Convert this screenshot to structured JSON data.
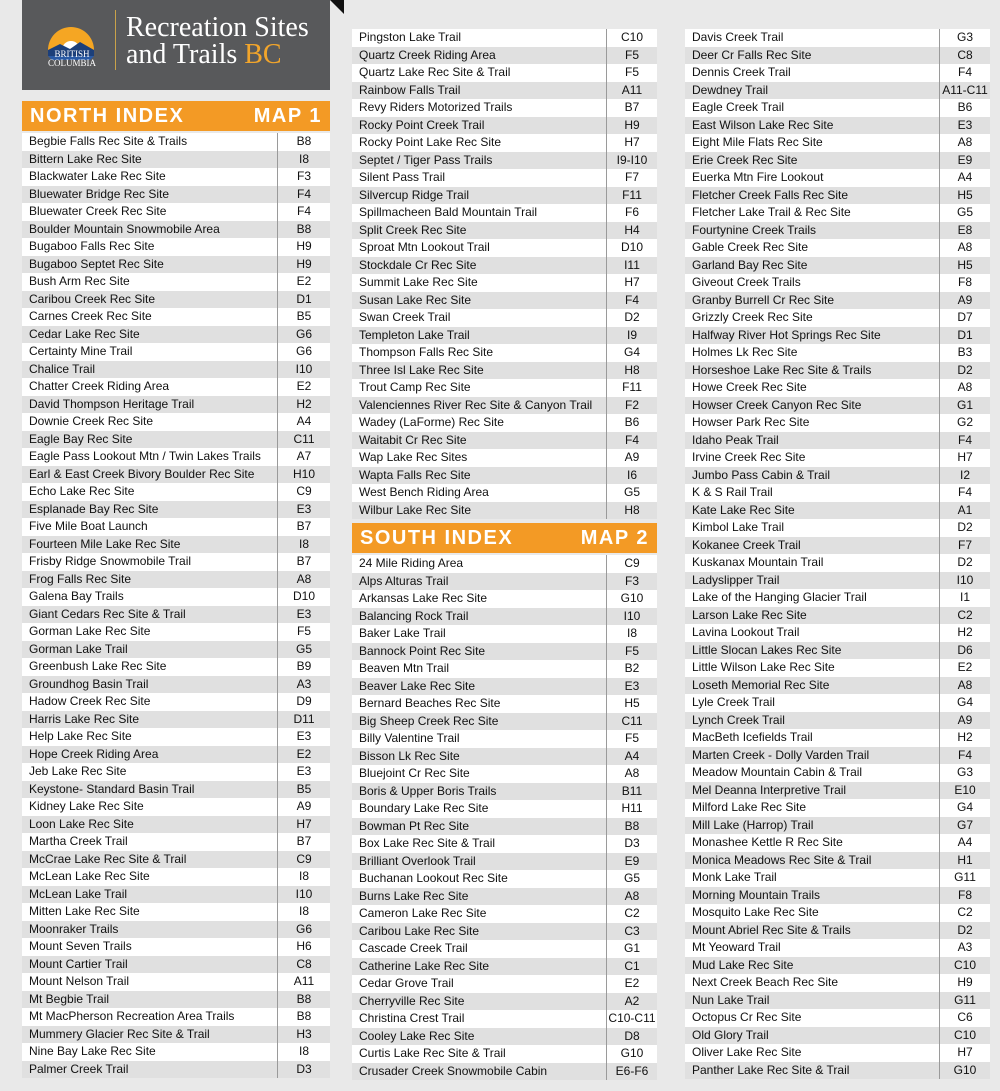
{
  "header": {
    "logo_text_line1": "BRITISH",
    "logo_text_line2": "COLUMBIA",
    "title_line1": "Recreation Sites",
    "title_line2_a": "and Trails",
    "title_line2_b": "BC"
  },
  "colors": {
    "accent": "#f39a25",
    "header_bg": "#58595b",
    "bc_gold": "#f2a52b"
  },
  "north_index": {
    "title": "NORTH INDEX",
    "map": "MAP 1",
    "entries": [
      [
        "Begbie Falls Rec Site & Trails",
        "B8"
      ],
      [
        "Bittern Lake Rec Site",
        "I8"
      ],
      [
        "Blackwater Lake Rec Site",
        "F3"
      ],
      [
        "Bluewater Bridge Rec Site",
        "F4"
      ],
      [
        "Bluewater Creek Rec Site",
        "F4"
      ],
      [
        "Boulder Mountain Snowmobile Area",
        "B8"
      ],
      [
        "Bugaboo Falls Rec Site",
        "H9"
      ],
      [
        "Bugaboo Septet Rec Site",
        "H9"
      ],
      [
        "Bush Arm Rec Site",
        "E2"
      ],
      [
        "Caribou Creek Rec Site",
        "D1"
      ],
      [
        "Carnes Creek Rec Site",
        "B5"
      ],
      [
        "Cedar Lake Rec Site",
        "G6"
      ],
      [
        "Certainty Mine Trail",
        "G6"
      ],
      [
        "Chalice Trail",
        "I10"
      ],
      [
        "Chatter Creek Riding Area",
        "E2"
      ],
      [
        "David Thompson Heritage Trail",
        "H2"
      ],
      [
        "Downie Creek Rec Site",
        "A4"
      ],
      [
        "Eagle Bay Rec Site",
        "C11"
      ],
      [
        "Eagle Pass Lookout Mtn / Twin Lakes Trails",
        "A7"
      ],
      [
        "Earl & East Creek Bivory Boulder Rec Site",
        "H10"
      ],
      [
        "Echo Lake Rec Site",
        "C9"
      ],
      [
        "Esplanade Bay Rec Site",
        "E3"
      ],
      [
        "Five Mile Boat Launch",
        "B7"
      ],
      [
        "Fourteen Mile Lake Rec Site",
        "I8"
      ],
      [
        "Frisby Ridge Snowmobile Trail",
        "B7"
      ],
      [
        "Frog Falls Rec Site",
        "A8"
      ],
      [
        "Galena Bay Trails",
        "D10"
      ],
      [
        "Giant Cedars Rec Site & Trail",
        "E3"
      ],
      [
        "Gorman Lake Rec Site",
        "F5"
      ],
      [
        "Gorman Lake Trail",
        "G5"
      ],
      [
        "Greenbush Lake Rec Site",
        "B9"
      ],
      [
        "Groundhog Basin Trail",
        "A3"
      ],
      [
        "Hadow Creek Rec Site",
        "D9"
      ],
      [
        "Harris Lake Rec Site",
        "D11"
      ],
      [
        "Help Lake Rec Site",
        "E3"
      ],
      [
        "Hope Creek Riding Area",
        "E2"
      ],
      [
        "Jeb Lake Rec Site",
        "E3"
      ],
      [
        "Keystone- Standard Basin Trail",
        "B5"
      ],
      [
        "Kidney Lake Rec Site",
        "A9"
      ],
      [
        "Loon Lake Rec Site",
        "H7"
      ],
      [
        "Martha Creek Trail",
        "B7"
      ],
      [
        "McCrae Lake Rec Site & Trail",
        "C9"
      ],
      [
        "McLean Lake Rec Site",
        "I8"
      ],
      [
        "McLean Lake Trail",
        "I10"
      ],
      [
        "Mitten Lake Rec Site",
        "I8"
      ],
      [
        "Moonraker Trails",
        "G6"
      ],
      [
        "Mount Seven Trails",
        "H6"
      ],
      [
        "Mount Cartier Trail",
        "C8"
      ],
      [
        "Mount Nelson Trail",
        "A11"
      ],
      [
        "Mt Begbie Trail",
        "B8"
      ],
      [
        "Mt MacPherson Recreation Area Trails",
        "B8"
      ],
      [
        "Mummery Glacier Rec Site & Trail",
        "H3"
      ],
      [
        "Nine Bay Lake Rec Site",
        "I8"
      ],
      [
        "Palmer Creek Trail",
        "D3"
      ]
    ]
  },
  "north_index_cont": {
    "entries": [
      [
        "Pingston Lake Trail",
        "C10"
      ],
      [
        "Quartz Creek Riding Area",
        "F5"
      ],
      [
        "Quartz Lake Rec Site & Trail",
        "F5"
      ],
      [
        "Rainbow Falls Trail",
        "A11"
      ],
      [
        "Revy Riders Motorized Trails",
        "B7"
      ],
      [
        "Rocky Point Creek Trail",
        "H9"
      ],
      [
        "Rocky Point Lake Rec Site",
        "H7"
      ],
      [
        "Septet / Tiger Pass Trails",
        "I9-I10"
      ],
      [
        "Silent Pass Trail",
        "F7"
      ],
      [
        "Silvercup Ridge Trail",
        "F11"
      ],
      [
        "Spillmacheen Bald Mountain Trail",
        "F6"
      ],
      [
        "Split Creek Rec Site",
        "H4"
      ],
      [
        "Sproat Mtn Lookout Trail",
        "D10"
      ],
      [
        "Stockdale Cr Rec Site",
        "I11"
      ],
      [
        "Summit Lake Rec Site",
        "H7"
      ],
      [
        "Susan Lake Rec Site",
        "F4"
      ],
      [
        "Swan Creek Trail",
        "D2"
      ],
      [
        "Templeton Lake Trail",
        "I9"
      ],
      [
        "Thompson Falls Rec Site",
        "G4"
      ],
      [
        "Three Isl Lake Rec Site",
        "H8"
      ],
      [
        "Trout Camp Rec Site",
        "F11"
      ],
      [
        "Valenciennes River Rec Site & Canyon Trail",
        "F2"
      ],
      [
        "Wadey (LaForme) Rec Site",
        "B6"
      ],
      [
        "Waitabit Cr Rec Site",
        "F4"
      ],
      [
        "Wap Lake Rec Sites",
        "A9"
      ],
      [
        "Wapta Falls Rec Site",
        "I6"
      ],
      [
        "West Bench Riding Area",
        "G5"
      ],
      [
        "Wilbur Lake Rec Site",
        "H8"
      ]
    ]
  },
  "south_index": {
    "title": "SOUTH INDEX",
    "map": "MAP 2",
    "entries": [
      [
        "24 Mile Riding Area",
        "C9"
      ],
      [
        "Alps Alturas Trail",
        "F3"
      ],
      [
        "Arkansas Lake Rec Site",
        "G10"
      ],
      [
        "Balancing Rock Trail",
        "I10"
      ],
      [
        "Baker Lake Trail",
        "I8"
      ],
      [
        "Bannock Point Rec Site",
        "F5"
      ],
      [
        "Beaven Mtn Trail",
        "B2"
      ],
      [
        "Beaver Lake Rec Site",
        "E3"
      ],
      [
        "Bernard Beaches Rec Site",
        "H5"
      ],
      [
        "Big Sheep Creek Rec Site",
        "C11"
      ],
      [
        "Billy Valentine Trail",
        "F5"
      ],
      [
        "Bisson Lk Rec Site",
        "A4"
      ],
      [
        "Bluejoint Cr Rec Site",
        "A8"
      ],
      [
        "Boris & Upper Boris Trails",
        "B11"
      ],
      [
        "Boundary Lake Rec Site",
        "H11"
      ],
      [
        "Bowman Pt Rec Site",
        "B8"
      ],
      [
        "Box Lake Rec Site & Trail",
        "D3"
      ],
      [
        "Brilliant Overlook Trail",
        "E9"
      ],
      [
        "Buchanan Lookout Rec Site",
        "G5"
      ],
      [
        "Burns Lake Rec Site",
        "A8"
      ],
      [
        "Cameron Lake Rec Site",
        "C2"
      ],
      [
        "Caribou Lake Rec Site",
        "C3"
      ],
      [
        "Cascade Creek Trail",
        "G1"
      ],
      [
        "Catherine Lake Rec Site",
        "C1"
      ],
      [
        "Cedar Grove Trail",
        "E2"
      ],
      [
        "Cherryville Rec Site",
        "A2"
      ],
      [
        "Christina Crest Trail",
        "C10-C11"
      ],
      [
        "Cooley Lake Rec Site",
        "D8"
      ],
      [
        "Curtis Lake Rec Site & Trail",
        "G10"
      ],
      [
        "Crusader Creek Snowmobile Cabin",
        "E6-F6"
      ]
    ]
  },
  "south_index_cont": {
    "entries": [
      [
        "Davis Creek Trail",
        "G3"
      ],
      [
        "Deer Cr Falls Rec Site",
        "C8"
      ],
      [
        "Dennis Creek Trail",
        "F4"
      ],
      [
        "Dewdney Trail",
        "A11-C11"
      ],
      [
        "Eagle Creek Trail",
        "B6"
      ],
      [
        "East Wilson Lake Rec Site",
        "E3"
      ],
      [
        "Eight Mile Flats Rec Site",
        "A8"
      ],
      [
        "Erie Creek Rec Site",
        "E9"
      ],
      [
        "Euerka Mtn Fire Lookout",
        "A4"
      ],
      [
        "Fletcher Creek Falls Rec Site",
        "H5"
      ],
      [
        "Fletcher Lake Trail & Rec Site",
        "G5"
      ],
      [
        "Fourtynine Creek Trails",
        "E8"
      ],
      [
        "Gable Creek Rec Site",
        "A8"
      ],
      [
        "Garland Bay Rec Site",
        "H5"
      ],
      [
        "Giveout Creek Trails",
        "F8"
      ],
      [
        "Granby Burrell Cr Rec Site",
        "A9"
      ],
      [
        "Grizzly Creek Rec Site",
        "D7"
      ],
      [
        "Halfway River Hot Springs Rec Site",
        "D1"
      ],
      [
        "Holmes Lk Rec Site",
        "B3"
      ],
      [
        "Horseshoe Lake Rec Site & Trails",
        "D2"
      ],
      [
        "Howe Creek Rec Site",
        "A8"
      ],
      [
        "Howser Creek Canyon Rec Site",
        "G1"
      ],
      [
        "Howser Park Rec Site",
        "G2"
      ],
      [
        "Idaho Peak Trail",
        "F4"
      ],
      [
        "Irvine Creek Rec Site",
        "H7"
      ],
      [
        "Jumbo Pass Cabin & Trail",
        "I2"
      ],
      [
        "K & S Rail Trail",
        "F4"
      ],
      [
        "Kate Lake Rec Site",
        "A1"
      ],
      [
        "Kimbol Lake Trail",
        "D2"
      ],
      [
        "Kokanee Creek Trail",
        "F7"
      ],
      [
        "Kuskanax Mountain Trail",
        "D2"
      ],
      [
        "Ladyslipper Trail",
        "I10"
      ],
      [
        "Lake of the Hanging Glacier Trail",
        "I1"
      ],
      [
        "Larson Lake Rec Site",
        "C2"
      ],
      [
        "Lavina Lookout Trail",
        "H2"
      ],
      [
        "Little Slocan Lakes Rec Site",
        "D6"
      ],
      [
        "Little Wilson Lake Rec Site",
        "E2"
      ],
      [
        "Loseth Memorial Rec Site",
        "A8"
      ],
      [
        "Lyle Creek Trail",
        "G4"
      ],
      [
        "Lynch Creek Trail",
        "A9"
      ],
      [
        "MacBeth Icefields Trail",
        "H2"
      ],
      [
        "Marten Creek - Dolly Varden Trail",
        "F4"
      ],
      [
        "Meadow Mountain Cabin & Trail",
        "G3"
      ],
      [
        "Mel Deanna Interpretive Trail",
        "E10"
      ],
      [
        "Milford Lake Rec Site",
        "G4"
      ],
      [
        "Mill Lake (Harrop) Trail",
        "G7"
      ],
      [
        "Monashee Kettle R Rec Site",
        "A4"
      ],
      [
        "Monica Meadows Rec Site & Trail",
        "H1"
      ],
      [
        "Monk Lake Trail",
        "G11"
      ],
      [
        "Morning Mountain Trails",
        "F8"
      ],
      [
        "Mosquito Lake Rec Site",
        "C2"
      ],
      [
        "Mount Abriel Rec Site & Trails",
        "D2"
      ],
      [
        "Mt Yeoward Trail",
        "A3"
      ],
      [
        "Mud Lake Rec Site",
        "C10"
      ],
      [
        "Next Creek Beach Rec Site",
        "H9"
      ],
      [
        "Nun Lake Trail",
        "G11"
      ],
      [
        "Octopus Cr Rec Site",
        "C6"
      ],
      [
        "Old Glory Trail",
        "C10"
      ],
      [
        "Oliver Lake Rec Site",
        "H7"
      ],
      [
        "Panther Lake Rec Site & Trail",
        "G10"
      ]
    ]
  }
}
